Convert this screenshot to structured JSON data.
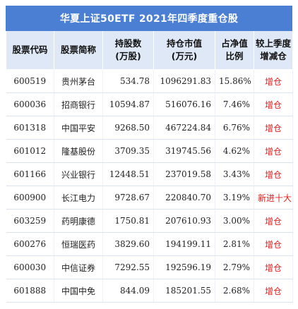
{
  "title": "华夏上证50ETF 2021年四季度重仓股",
  "headers": {
    "code": "股票代码",
    "name": "股票简称",
    "shares_line1": "持股数",
    "shares_line2": "(万股)",
    "value_line1": "持仓市值",
    "value_line2": "(万元)",
    "ratio_line1": "占净值",
    "ratio_line2": "比例",
    "change_line1": "较上季度",
    "change_line2": "增减仓"
  },
  "rows": [
    {
      "code": "600519",
      "name": "贵州茅台",
      "shares": "534.78",
      "value": "1096291.83",
      "ratio": "15.86%",
      "change": "增仓"
    },
    {
      "code": "600036",
      "name": "招商银行",
      "shares": "10594.87",
      "value": "516076.16",
      "ratio": "7.46%",
      "change": "增仓"
    },
    {
      "code": "601318",
      "name": "中国平安",
      "shares": "9268.50",
      "value": "467224.84",
      "ratio": "6.76%",
      "change": "增仓"
    },
    {
      "code": "601012",
      "name": "隆基股份",
      "shares": "3709.35",
      "value": "319745.56",
      "ratio": "4.62%",
      "change": "增仓"
    },
    {
      "code": "601166",
      "name": "兴业银行",
      "shares": "12448.51",
      "value": "237019.58",
      "ratio": "3.43%",
      "change": "增仓"
    },
    {
      "code": "600900",
      "name": "长江电力",
      "shares": "9728.67",
      "value": "220840.70",
      "ratio": "3.19%",
      "change": "新进十大"
    },
    {
      "code": "603259",
      "name": "药明康德",
      "shares": "1750.81",
      "value": "207610.93",
      "ratio": "3.00%",
      "change": "增仓"
    },
    {
      "code": "600276",
      "name": "恒瑞医药",
      "shares": "3829.60",
      "value": "194199.11",
      "ratio": "2.81%",
      "change": "增仓"
    },
    {
      "code": "600030",
      "name": "中信证券",
      "shares": "7292.55",
      "value": "192596.19",
      "ratio": "2.79%",
      "change": "增仓"
    },
    {
      "code": "601888",
      "name": "中国中免",
      "shares": "844.09",
      "value": "185201.55",
      "ratio": "2.68%",
      "change": "增仓"
    }
  ],
  "colors": {
    "title_bg": "#4a7fd4",
    "header_bg": "#dfe8f6",
    "change_text": "#e02020"
  }
}
